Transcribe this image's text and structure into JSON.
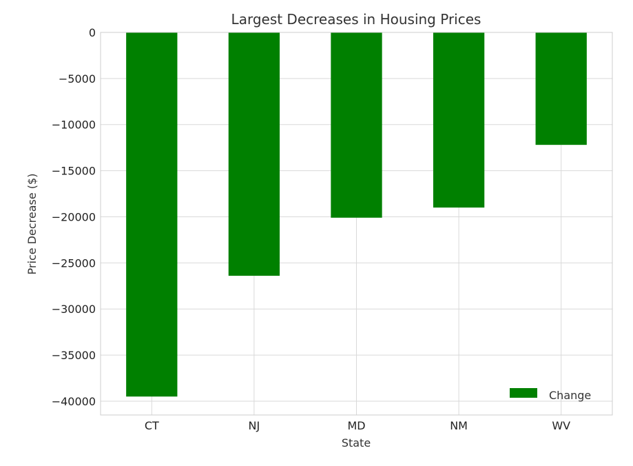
{
  "chart_data": {
    "type": "bar",
    "title": "Largest Decreases in Housing Prices",
    "xlabel": "State",
    "ylabel": "Price Decrease ($)",
    "categories": [
      "CT",
      "NJ",
      "MD",
      "NM",
      "WV"
    ],
    "series": [
      {
        "name": "Change",
        "values": [
          -39500,
          -26400,
          -20100,
          -19000,
          -12200
        ],
        "color": "#008000"
      }
    ],
    "ylim": [
      -41500,
      0
    ],
    "yticks": [
      0,
      -5000,
      -10000,
      -15000,
      -20000,
      -25000,
      -30000,
      -35000,
      -40000
    ],
    "ytick_labels": [
      "0",
      "−5000",
      "−10000",
      "−15000",
      "−20000",
      "−25000",
      "−30000",
      "−35000",
      "−40000"
    ],
    "grid": true,
    "legend_position": "lower-right"
  }
}
